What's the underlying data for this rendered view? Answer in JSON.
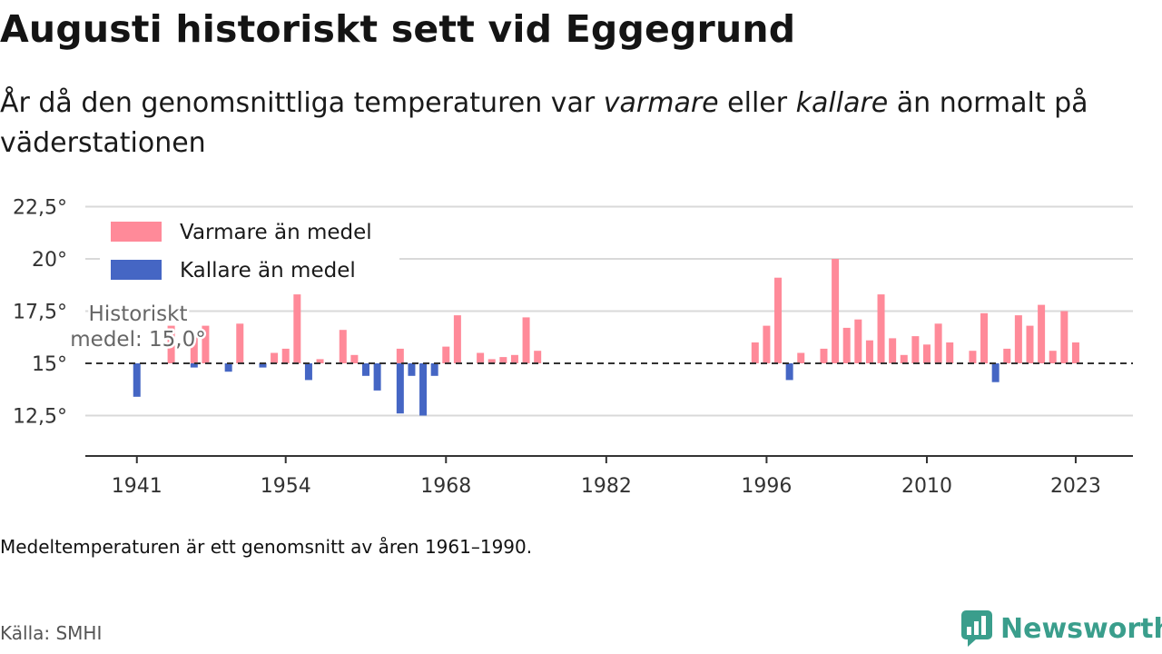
{
  "title": "Augusti historiskt sett vid Eggegrund",
  "subtitle": {
    "before": "År då den genomsnittliga temperaturen var ",
    "warm_word": "varmare",
    "middle": " eller ",
    "cold_word": "kallare",
    "after": " än normalt på väderstationen"
  },
  "note": "Medeltemperaturen är ett genomsnitt av åren 1961–1990.",
  "source": "Källa: SMHI",
  "brand": {
    "name": "Newsworthy",
    "icon": "newsworthy-logo-icon",
    "color": "#3a9e8c"
  },
  "colors": {
    "warm": "#ff8a99",
    "cold": "#4566c4",
    "grid": "#d9d9d9",
    "axis": "#333333"
  },
  "chart_data": {
    "type": "bar",
    "baseline": 15.0,
    "baseline_label": [
      "Historiskt",
      "medel: 15,0°"
    ],
    "ylim": [
      11,
      23.5
    ],
    "yticks": [
      12.5,
      15,
      17.5,
      20,
      22.5
    ],
    "ytick_labels": [
      "12,5°",
      "15°",
      "17,5°",
      "20°",
      "22,5°"
    ],
    "xlim": [
      1936.5,
      2028
    ],
    "xticks": [
      1941,
      1954,
      1968,
      1982,
      1996,
      2010,
      2023
    ],
    "xtick_labels": [
      "1941",
      "1954",
      "1968",
      "1982",
      "1996",
      "2010",
      "2023"
    ],
    "grid": true,
    "legend": {
      "position": "top-left",
      "warm_label": "Varmare än medel",
      "cold_label": "Kallare än medel"
    },
    "series": [
      {
        "name": "Varmare än medel",
        "color": "#ff8a99",
        "x": [
          1944,
          1946,
          1947,
          1950,
          1953,
          1954,
          1955,
          1957,
          1959,
          1960,
          1964,
          1968,
          1969,
          1971,
          1972,
          1973,
          1974,
          1975,
          1976,
          1995,
          1996,
          1997,
          1999,
          2001,
          2002,
          2003,
          2004,
          2005,
          2006,
          2007,
          2008,
          2009,
          2010,
          2011,
          2012,
          2014,
          2015,
          2017,
          2018,
          2019,
          2020,
          2021,
          2022,
          2023
        ],
        "values": [
          16.8,
          16.4,
          16.8,
          16.9,
          15.5,
          15.7,
          18.3,
          15.2,
          16.6,
          15.4,
          15.7,
          15.8,
          17.3,
          15.5,
          15.2,
          15.3,
          15.4,
          17.2,
          15.6,
          16.0,
          16.8,
          19.1,
          15.5,
          15.7,
          20.0,
          16.7,
          17.1,
          16.1,
          18.3,
          16.2,
          15.4,
          16.3,
          15.9,
          16.9,
          16.0,
          15.6,
          17.4,
          15.7,
          17.3,
          16.8,
          17.8,
          15.6,
          17.5,
          16.0
        ]
      },
      {
        "name": "Kallare än medel",
        "color": "#4566c4",
        "x": [
          1941,
          1946,
          1949,
          1952,
          1956,
          1961,
          1962,
          1964,
          1965,
          1966,
          1967,
          1998,
          2016
        ],
        "values": [
          13.4,
          14.8,
          14.6,
          14.8,
          14.2,
          14.4,
          13.7,
          12.6,
          14.4,
          12.5,
          14.4,
          14.2,
          14.1
        ]
      }
    ]
  }
}
